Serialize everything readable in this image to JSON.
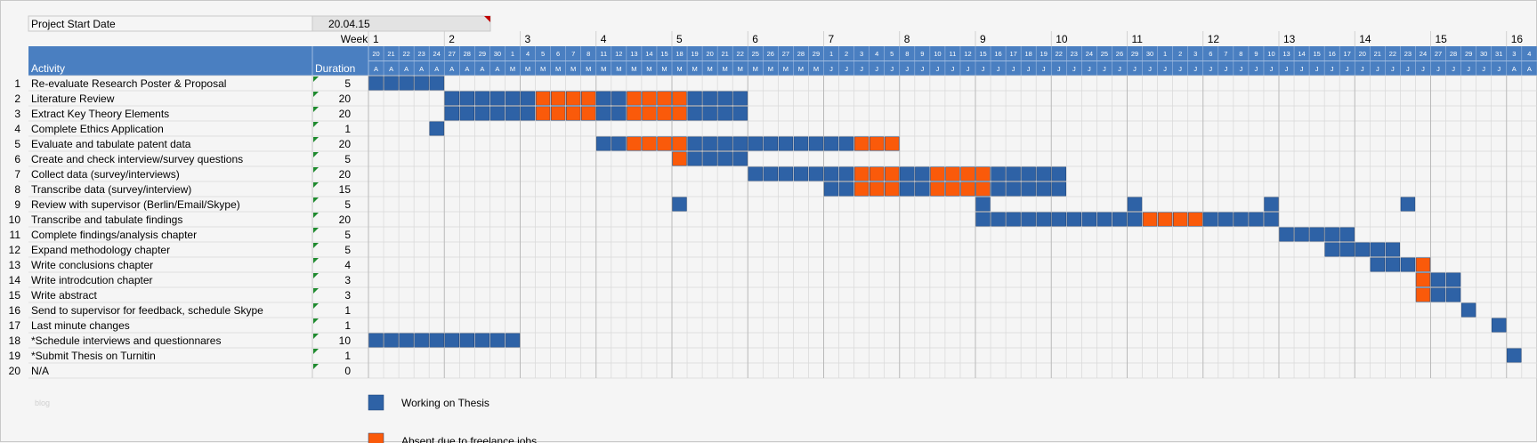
{
  "sheet": {
    "start_label": "Project Start Date",
    "start_value": "20.04.15",
    "week_label": "Week",
    "activity_header": "Activity",
    "duration_header": "Duration",
    "watermark": "blog"
  },
  "chart_data": {
    "type": "gantt",
    "weeks": [
      "1",
      "2",
      "3",
      "4",
      "5",
      "6",
      "7",
      "8",
      "9",
      "10",
      "11",
      "12",
      "13",
      "14",
      "15",
      "16"
    ],
    "days": [
      "20",
      "21",
      "22",
      "23",
      "24",
      "27",
      "28",
      "29",
      "30",
      "1",
      "4",
      "5",
      "6",
      "7",
      "8",
      "11",
      "12",
      "13",
      "14",
      "15",
      "18",
      "19",
      "20",
      "21",
      "22",
      "25",
      "26",
      "27",
      "28",
      "29",
      "1",
      "2",
      "3",
      "4",
      "5",
      "8",
      "9",
      "10",
      "11",
      "12",
      "15",
      "16",
      "17",
      "18",
      "19",
      "22",
      "23",
      "24",
      "25",
      "26",
      "29",
      "30",
      "1",
      "2",
      "3",
      "6",
      "7",
      "8",
      "9",
      "10",
      "13",
      "14",
      "15",
      "16",
      "17",
      "20",
      "21",
      "22",
      "23",
      "24",
      "27",
      "28",
      "29",
      "30",
      "31",
      "3",
      "4"
    ],
    "months": [
      "A",
      "A",
      "A",
      "A",
      "A",
      "A",
      "A",
      "A",
      "A",
      "M",
      "M",
      "M",
      "M",
      "M",
      "M",
      "M",
      "M",
      "M",
      "M",
      "M",
      "M",
      "M",
      "M",
      "M",
      "M",
      "M",
      "M",
      "M",
      "M",
      "M",
      "J",
      "J",
      "J",
      "J",
      "J",
      "J",
      "J",
      "J",
      "J",
      "J",
      "J",
      "J",
      "J",
      "J",
      "J",
      "J",
      "J",
      "J",
      "J",
      "J",
      "J",
      "J",
      "J",
      "J",
      "J",
      "J",
      "J",
      "J",
      "J",
      "J",
      "J",
      "J",
      "J",
      "J",
      "J",
      "J",
      "J",
      "J",
      "J",
      "J",
      "J",
      "J",
      "J",
      "J",
      "J",
      "A",
      "A"
    ],
    "tasks": [
      {
        "num": "1",
        "name": "Re-evaluate Research Poster & Proposal",
        "duration": "5",
        "working": [
          [
            0,
            4
          ]
        ],
        "absent": []
      },
      {
        "num": "2",
        "name": "Literature Review",
        "duration": "20",
        "working": [
          [
            5,
            10
          ],
          [
            15,
            16
          ],
          [
            21,
            24
          ]
        ],
        "absent": [
          [
            11,
            14
          ],
          [
            17,
            20
          ]
        ]
      },
      {
        "num": "3",
        "name": "Extract Key Theory Elements",
        "duration": "20",
        "working": [
          [
            5,
            10
          ],
          [
            15,
            16
          ],
          [
            21,
            24
          ]
        ],
        "absent": [
          [
            11,
            14
          ],
          [
            17,
            20
          ]
        ]
      },
      {
        "num": "4",
        "name": "Complete Ethics Application",
        "duration": "1",
        "working": [
          [
            4,
            4
          ]
        ],
        "absent": []
      },
      {
        "num": "5",
        "name": "Evaluate and tabulate patent data",
        "duration": "20",
        "working": [
          [
            15,
            16
          ],
          [
            21,
            31
          ]
        ],
        "absent": [
          [
            17,
            20
          ],
          [
            32,
            34
          ]
        ]
      },
      {
        "num": "6",
        "name": "Create and check interview/survey questions",
        "duration": "5",
        "working": [
          [
            21,
            24
          ]
        ],
        "absent": [
          [
            20,
            20
          ]
        ]
      },
      {
        "num": "7",
        "name": "Collect data (survey/interviews)",
        "duration": "20",
        "working": [
          [
            25,
            31
          ],
          [
            35,
            36
          ],
          [
            41,
            45
          ]
        ],
        "absent": [
          [
            32,
            34
          ],
          [
            37,
            40
          ]
        ]
      },
      {
        "num": "8",
        "name": "Transcribe data (survey/interview)",
        "duration": "15",
        "working": [
          [
            30,
            31
          ],
          [
            35,
            36
          ],
          [
            41,
            45
          ]
        ],
        "absent": [
          [
            32,
            34
          ],
          [
            37,
            40
          ]
        ]
      },
      {
        "num": "9",
        "name": "Review with supervisor (Berlin/Email/Skype)",
        "duration": "5",
        "working": [
          [
            20,
            20
          ],
          [
            40,
            40
          ],
          [
            50,
            50
          ],
          [
            59,
            59
          ],
          [
            68,
            68
          ]
        ],
        "absent": []
      },
      {
        "num": "10",
        "name": "Transcribe and tabulate findings",
        "duration": "20",
        "working": [
          [
            40,
            50
          ],
          [
            55,
            59
          ]
        ],
        "absent": [
          [
            51,
            54
          ]
        ]
      },
      {
        "num": "11",
        "name": "Complete findings/analysis chapter",
        "duration": "5",
        "working": [
          [
            60,
            64
          ]
        ],
        "absent": []
      },
      {
        "num": "12",
        "name": "Expand methodology chapter",
        "duration": "5",
        "working": [
          [
            63,
            67
          ]
        ],
        "absent": []
      },
      {
        "num": "13",
        "name": "Write conclusions chapter",
        "duration": "4",
        "working": [
          [
            66,
            68
          ]
        ],
        "absent": [
          [
            69,
            69
          ]
        ]
      },
      {
        "num": "14",
        "name": "Write introdcution chapter",
        "duration": "3",
        "working": [
          [
            70,
            71
          ]
        ],
        "absent": [
          [
            69,
            69
          ]
        ]
      },
      {
        "num": "15",
        "name": "Write abstract",
        "duration": "3",
        "working": [
          [
            70,
            71
          ]
        ],
        "absent": [
          [
            69,
            69
          ]
        ]
      },
      {
        "num": "16",
        "name": "Send to supervisor for feedback, schedule Skype",
        "duration": "1",
        "working": [
          [
            72,
            72
          ]
        ],
        "absent": []
      },
      {
        "num": "17",
        "name": "Last minute changes",
        "duration": "1",
        "working": [
          [
            74,
            74
          ]
        ],
        "absent": []
      },
      {
        "num": "18",
        "name": "*Schedule interviews and questionnares",
        "duration": "10",
        "working": [
          [
            0,
            9
          ]
        ],
        "absent": []
      },
      {
        "num": "19",
        "name": "*Submit Thesis on Turnitin",
        "duration": "1",
        "working": [
          [
            75,
            75
          ]
        ],
        "absent": []
      },
      {
        "num": "20",
        "name": "N/A",
        "duration": "0",
        "working": [],
        "absent": []
      }
    ],
    "legend": [
      {
        "label": "Working on Thesis",
        "color": "#2e62a6"
      },
      {
        "label": "Absent due to freelance jobs",
        "color": "#fa5a0a"
      }
    ],
    "colors": {
      "header": "#4a7fc1",
      "working": "#2e62a6",
      "absent": "#fa5a0a",
      "grid": "#d8d8d8"
    }
  }
}
